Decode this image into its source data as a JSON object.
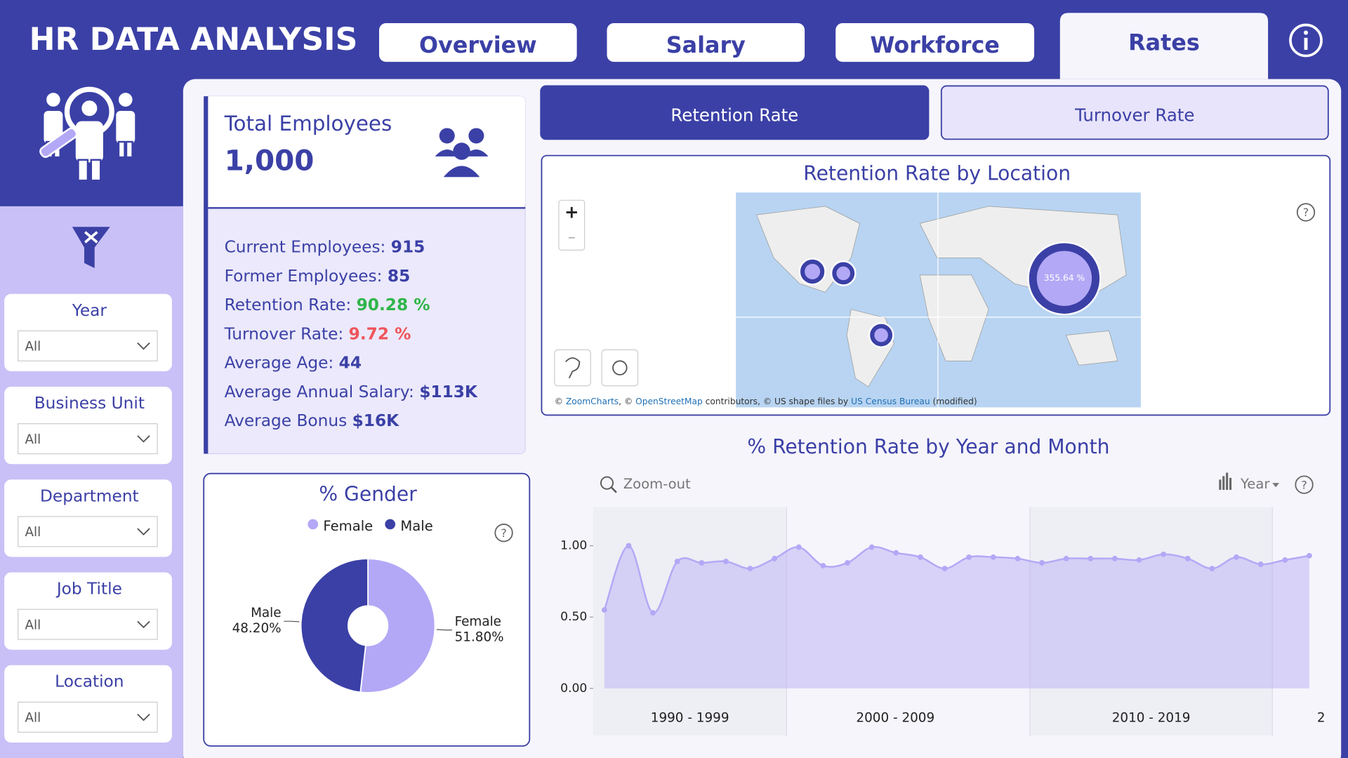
{
  "header": {
    "title": "HR DATA ANALYSIS"
  },
  "tabs": [
    "Overview",
    "Salary",
    "Workforce",
    "Rates"
  ],
  "filters": [
    {
      "label": "Year",
      "value": "All"
    },
    {
      "label": "Business Unit",
      "value": "All"
    },
    {
      "label": "Department",
      "value": "All"
    },
    {
      "label": "Job Title",
      "value": "All"
    },
    {
      "label": "Location",
      "value": "All"
    }
  ],
  "kpi": {
    "title": "Total Employees",
    "value": "1,000",
    "stats": [
      {
        "label": "Current Employees:",
        "value": "915"
      },
      {
        "label": "Former Employees:",
        "value": "85"
      },
      {
        "label": "Retention Rate:",
        "value": "90.28 %"
      },
      {
        "label": "Turnover Rate:",
        "value": "9.72 %"
      },
      {
        "label": "Average Age:",
        "value": "44"
      },
      {
        "label": "Average Annual Salary:",
        "value": "$113K"
      },
      {
        "label": "Average Bonus",
        "value": "$16K"
      }
    ]
  },
  "buttons": [
    "Retention Rate",
    "Turnover Rate"
  ],
  "map": {
    "title": "Retention Rate by Location",
    "bubble_label": "355.64 %",
    "zoom_in": "+",
    "zoom_out": "–",
    "attribution": [
      "© ",
      "ZoomCharts",
      ", © ",
      "OpenStreetMap",
      " contributors, © US shape files by ",
      "US Census Bureau",
      " (modified)"
    ]
  },
  "chart_data": [
    {
      "type": "pie",
      "title": "% Gender",
      "categories": [
        "Female",
        "Male"
      ],
      "values": [
        51.8,
        48.2
      ],
      "value_labels": [
        "51.80%",
        "48.20%"
      ],
      "colors": [
        "#b3a8f6",
        "#3b40a6"
      ],
      "donut": true
    },
    {
      "type": "line",
      "title": "% Retention Rate by Year and Month",
      "zoom_label": "Zoom-out",
      "period_label": "Year",
      "categories": [
        null,
        null,
        null,
        null,
        null,
        null,
        null,
        null,
        null,
        null,
        null,
        null,
        null,
        null,
        null,
        null,
        null,
        null,
        null,
        null,
        null,
        null,
        null,
        null,
        null,
        null,
        null,
        null,
        null,
        null
      ],
      "x_groups": [
        "1990 - 1999",
        "2000 - 2009",
        "2010 - 2019",
        "2"
      ],
      "series": [
        {
          "name": "Retention Rate",
          "color": "#b3a8f6",
          "values": [
            0.55,
            1.0,
            0.53,
            0.89,
            0.88,
            0.89,
            0.84,
            0.91,
            0.99,
            0.86,
            0.88,
            0.99,
            0.95,
            0.92,
            0.84,
            0.92,
            0.92,
            0.91,
            0.88,
            0.91,
            0.91,
            0.91,
            0.9,
            0.94,
            0.91,
            0.84,
            0.92,
            0.87,
            0.9,
            0.93
          ]
        }
      ],
      "ylim": [
        0,
        1.25
      ],
      "yticks": [
        {
          "value": 1,
          "label": "1.00"
        },
        {
          "value": 0.5,
          "label": "0.50"
        },
        {
          "value": 0,
          "label": "0.00"
        }
      ],
      "area": true
    }
  ]
}
